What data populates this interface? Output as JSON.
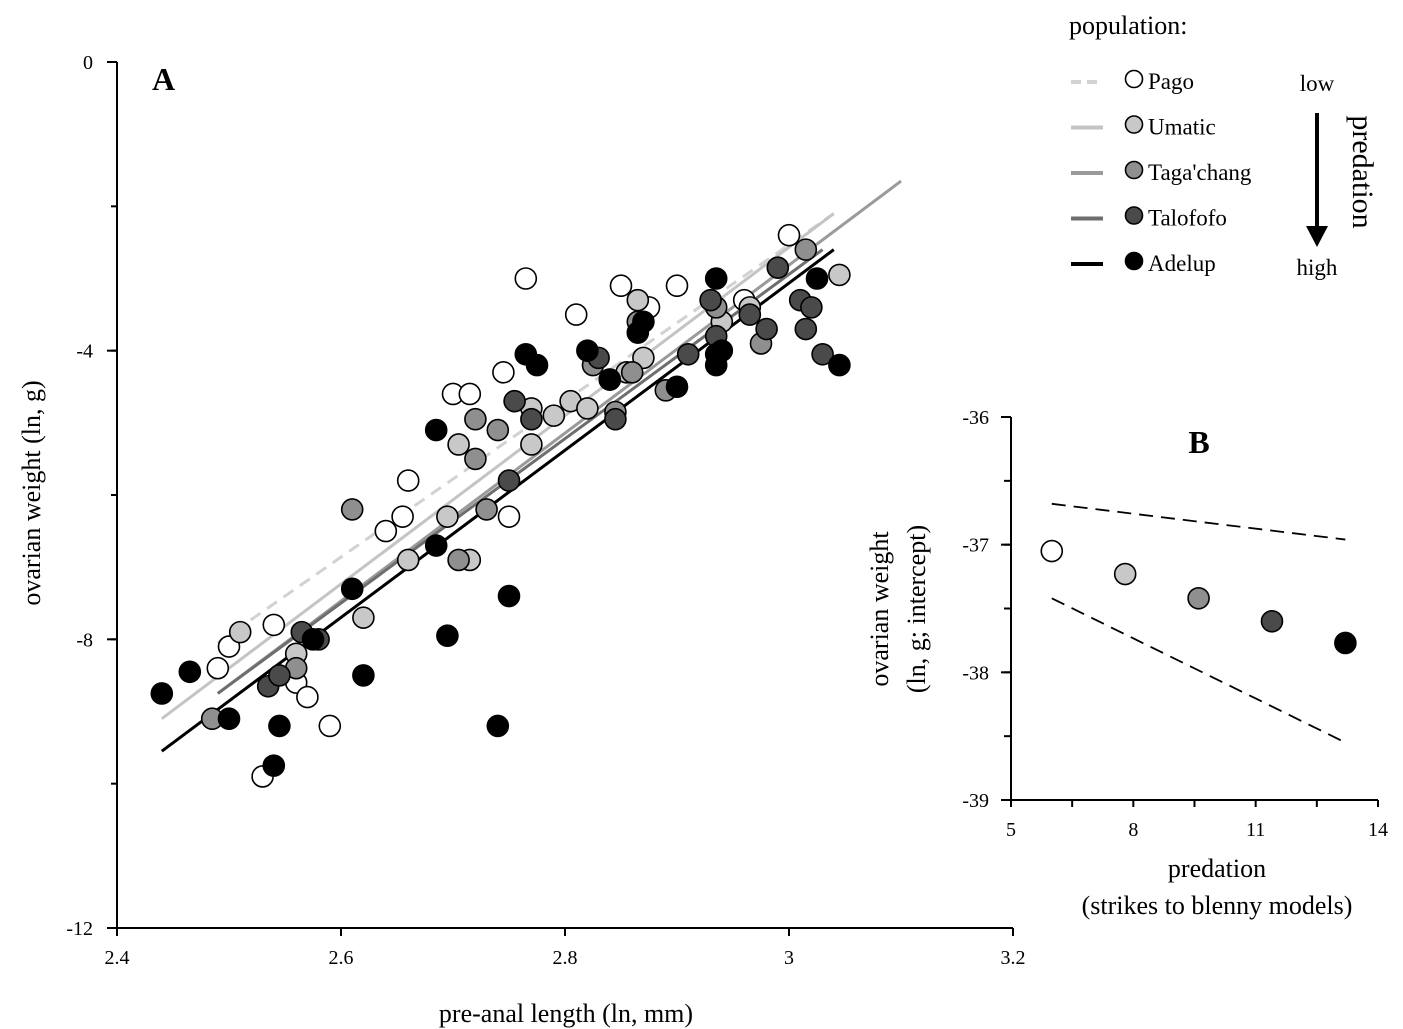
{
  "colors": {
    "Pago": "#ffffff",
    "Umatic": "#c8c8c8",
    "Taga'chang": "#8f8f8f",
    "Talofofo": "#4a4a4a",
    "Adelup": "#000000",
    "line_Pago": "#d2d2d2",
    "line_Umatic": "#c4c4c4",
    "line_Taga'chang": "#9a9a9a",
    "line_Talofofo": "#6e6e6e",
    "line_Adelup": "#000000"
  },
  "legend": {
    "title": "population:",
    "entries": [
      {
        "name": "Pago",
        "line_style": "dashed"
      },
      {
        "name": "Umatic",
        "line_style": "solid"
      },
      {
        "name": "Taga'chang",
        "line_style": "solid"
      },
      {
        "name": "Talofofo",
        "line_style": "solid"
      },
      {
        "name": "Adelup",
        "line_style": "solid"
      }
    ],
    "arrow_top": "low",
    "arrow_bottom": "high",
    "arrow_label": "predation"
  },
  "chart_data": [
    {
      "panel": "A",
      "type": "scatter",
      "xlabel": "pre-anal length (ln, mm)",
      "ylabel": "ovarian weight (ln, g)",
      "xlim": [
        2.4,
        3.2
      ],
      "ylim": [
        -12,
        0
      ],
      "xticks": [
        2.4,
        2.6,
        2.8,
        3.0,
        3.2
      ],
      "xtick_labels": [
        "2.4",
        "2.6",
        "2.8",
        "3",
        "3.2"
      ],
      "yticks": [
        -12,
        -8,
        -4,
        0
      ],
      "ytick_labels": [
        "-12",
        "-8",
        "-4",
        "0"
      ],
      "y_minor_step": 2,
      "grid": false,
      "legend_position": "top-right",
      "series": [
        {
          "name": "Pago",
          "points": [
            [
              2.49,
              -8.4
            ],
            [
              2.5,
              -8.1
            ],
            [
              2.54,
              -7.8
            ],
            [
              2.53,
              -9.9
            ],
            [
              2.56,
              -8.6
            ],
            [
              2.57,
              -8.8
            ],
            [
              2.59,
              -9.2
            ],
            [
              2.64,
              -6.5
            ],
            [
              2.655,
              -6.3
            ],
            [
              2.66,
              -5.8
            ],
            [
              2.7,
              -4.6
            ],
            [
              2.715,
              -4.6
            ],
            [
              2.745,
              -4.3
            ],
            [
              2.75,
              -6.3
            ],
            [
              2.765,
              -3.0
            ],
            [
              2.81,
              -3.5
            ],
            [
              2.85,
              -3.1
            ],
            [
              2.875,
              -3.4
            ],
            [
              2.9,
              -3.1
            ],
            [
              2.96,
              -3.3
            ],
            [
              3.0,
              -2.4
            ]
          ],
          "fit": [
            [
              2.49,
              -8.05
            ],
            [
              3.04,
              -2.1
            ]
          ]
        },
        {
          "name": "Umatic",
          "points": [
            [
              2.51,
              -7.9
            ],
            [
              2.56,
              -8.2
            ],
            [
              2.62,
              -7.7
            ],
            [
              2.66,
              -6.9
            ],
            [
              2.695,
              -6.3
            ],
            [
              2.705,
              -5.3
            ],
            [
              2.715,
              -6.9
            ],
            [
              2.77,
              -4.8
            ],
            [
              2.77,
              -5.3
            ],
            [
              2.79,
              -4.9
            ],
            [
              2.805,
              -4.7
            ],
            [
              2.82,
              -4.8
            ],
            [
              2.84,
              -4.4
            ],
            [
              2.855,
              -4.3
            ],
            [
              2.865,
              -3.3
            ],
            [
              2.87,
              -4.1
            ],
            [
              2.94,
              -3.6
            ],
            [
              2.965,
              -3.4
            ],
            [
              3.045,
              -2.95
            ]
          ],
          "fit": [
            [
              2.44,
              -9.1
            ],
            [
              3.04,
              -2.1
            ]
          ]
        },
        {
          "name": "Taga'chang",
          "points": [
            [
              2.485,
              -9.1
            ],
            [
              2.56,
              -8.4
            ],
            [
              2.61,
              -6.2
            ],
            [
              2.705,
              -6.9
            ],
            [
              2.72,
              -4.95
            ],
            [
              2.72,
              -5.5
            ],
            [
              2.73,
              -6.2
            ],
            [
              2.74,
              -5.1
            ],
            [
              2.825,
              -4.2
            ],
            [
              2.845,
              -4.85
            ],
            [
              2.86,
              -4.3
            ],
            [
              2.865,
              -3.6
            ],
            [
              2.89,
              -4.55
            ],
            [
              2.935,
              -3.4
            ],
            [
              2.975,
              -3.9
            ],
            [
              3.015,
              -2.6
            ]
          ],
          "fit": [
            [
              2.49,
              -8.75
            ],
            [
              3.1,
              -1.65
            ]
          ]
        },
        {
          "name": "Talofofo",
          "points": [
            [
              2.535,
              -8.65
            ],
            [
              2.545,
              -8.5
            ],
            [
              2.565,
              -7.9
            ],
            [
              2.58,
              -8.0
            ],
            [
              2.75,
              -5.8
            ],
            [
              2.755,
              -4.7
            ],
            [
              2.77,
              -4.95
            ],
            [
              2.83,
              -4.1
            ],
            [
              2.845,
              -4.95
            ],
            [
              2.91,
              -4.05
            ],
            [
              2.93,
              -3.3
            ],
            [
              2.935,
              -3.8
            ],
            [
              2.965,
              -3.5
            ],
            [
              2.98,
              -3.7
            ],
            [
              2.99,
              -2.85
            ],
            [
              3.01,
              -3.3
            ],
            [
              3.015,
              -3.7
            ],
            [
              3.02,
              -3.4
            ],
            [
              3.03,
              -4.05
            ]
          ],
          "fit": [
            [
              2.49,
              -8.75
            ],
            [
              3.03,
              -2.6
            ]
          ]
        },
        {
          "name": "Adelup",
          "points": [
            [
              2.44,
              -8.75
            ],
            [
              2.465,
              -8.45
            ],
            [
              2.5,
              -9.1
            ],
            [
              2.54,
              -9.75
            ],
            [
              2.545,
              -9.2
            ],
            [
              2.575,
              -8.0
            ],
            [
              2.61,
              -7.3
            ],
            [
              2.62,
              -8.5
            ],
            [
              2.685,
              -5.1
            ],
            [
              2.685,
              -6.7
            ],
            [
              2.695,
              -7.95
            ],
            [
              2.74,
              -9.2
            ],
            [
              2.75,
              -7.4
            ],
            [
              2.765,
              -4.05
            ],
            [
              2.775,
              -4.2
            ],
            [
              2.82,
              -4.0
            ],
            [
              2.84,
              -4.4
            ],
            [
              2.865,
              -3.75
            ],
            [
              2.87,
              -3.6
            ],
            [
              2.9,
              -4.5
            ],
            [
              2.935,
              -3.0
            ],
            [
              2.935,
              -4.05
            ],
            [
              2.935,
              -4.2
            ],
            [
              2.94,
              -4.0
            ],
            [
              3.025,
              -3.0
            ],
            [
              3.045,
              -4.2
            ]
          ],
          "fit": [
            [
              2.44,
              -9.55
            ],
            [
              3.04,
              -2.6
            ]
          ]
        }
      ]
    },
    {
      "panel": "B",
      "type": "scatter",
      "xlabel": "predation",
      "xlabel_line2": "(strikes to blenny models)",
      "ylabel": "ovarian weight",
      "ylabel_line2": "(ln, g; intercept)",
      "xlim": [
        5,
        14
      ],
      "ylim": [
        -39,
        -36
      ],
      "xticks": [
        5,
        8,
        11,
        14
      ],
      "xtick_labels": [
        "5",
        "8",
        "11",
        "14"
      ],
      "x_minor_step": 1.5,
      "yticks": [
        -39,
        -38,
        -37,
        -36
      ],
      "ytick_labels": [
        "-39",
        "-38",
        "-37",
        "-36"
      ],
      "y_minor_step": 0.5,
      "grid": false,
      "points": [
        {
          "name": "Pago",
          "x": 6.0,
          "y": -37.05
        },
        {
          "name": "Umatic",
          "x": 7.8,
          "y": -37.23
        },
        {
          "name": "Taga'chang",
          "x": 9.6,
          "y": -37.42
        },
        {
          "name": "Talofofo",
          "x": 11.4,
          "y": -37.6
        },
        {
          "name": "Adelup",
          "x": 13.2,
          "y": -37.77
        }
      ],
      "confidence_bands": [
        [
          [
            6.0,
            -36.68
          ],
          [
            13.2,
            -36.96
          ]
        ],
        [
          [
            6.0,
            -37.42
          ],
          [
            13.2,
            -38.55
          ]
        ]
      ]
    }
  ]
}
